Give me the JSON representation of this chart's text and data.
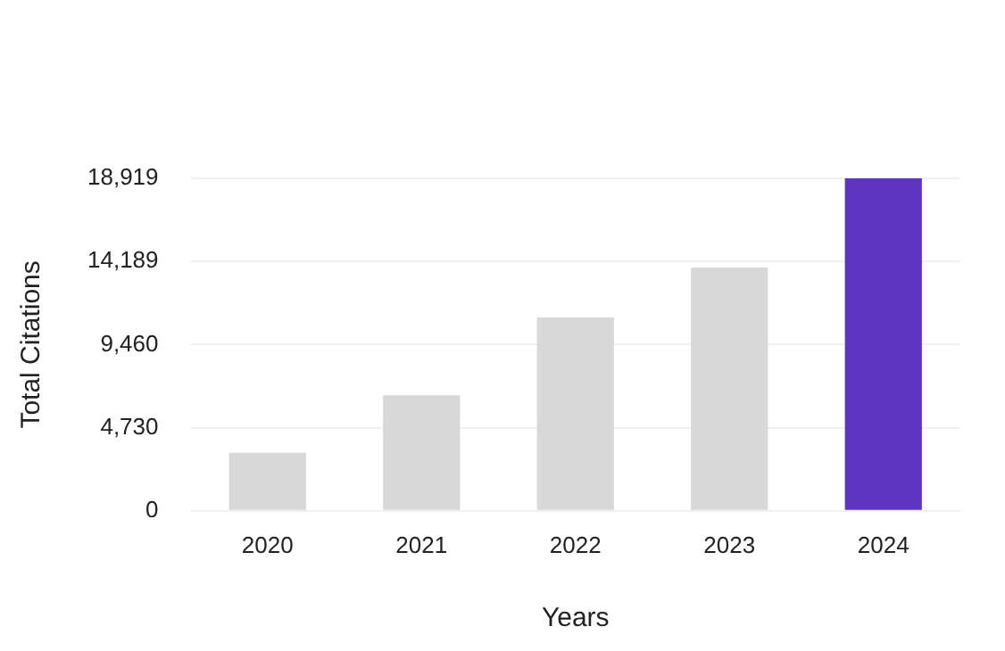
{
  "chart_data": {
    "type": "bar",
    "categories": [
      "2020",
      "2021",
      "2022",
      "2023",
      "2024"
    ],
    "values": [
      3300,
      6570,
      11000,
      13850,
      18919
    ],
    "colors": [
      "#d8d8d8",
      "#d8d8d8",
      "#d8d8d8",
      "#d8d8d8",
      "#5e35c1"
    ],
    "xlabel": "Years",
    "ylabel": "Total Citations",
    "ylim": [
      0,
      18919
    ],
    "yticks": [
      {
        "value": 0,
        "label": "0"
      },
      {
        "value": 4730,
        "label": "4,730"
      },
      {
        "value": 9460,
        "label": "9,460"
      },
      {
        "value": 14189,
        "label": "14,189"
      },
      {
        "value": 18919,
        "label": "18,919"
      }
    ],
    "grid": "y",
    "legend": false
  }
}
